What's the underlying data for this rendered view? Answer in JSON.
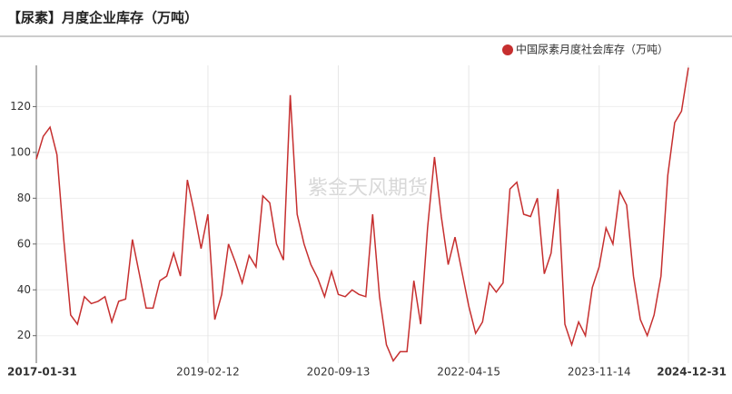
{
  "chart_data": {
    "type": "line",
    "title": "【尿素】月度企业库存（万吨）",
    "watermark": "紫金天风期货",
    "categories": [
      "2017-01-31",
      null,
      null,
      null,
      null,
      null,
      null,
      null,
      null,
      null,
      null,
      null,
      null,
      null,
      null,
      null,
      null,
      null,
      null,
      null,
      null,
      null,
      null,
      null,
      null,
      "2019-02-12",
      null,
      null,
      null,
      null,
      null,
      null,
      null,
      null,
      null,
      null,
      null,
      null,
      null,
      null,
      null,
      null,
      null,
      null,
      "2020-09-13",
      null,
      null,
      null,
      null,
      null,
      null,
      null,
      null,
      null,
      null,
      null,
      null,
      null,
      null,
      null,
      null,
      null,
      null,
      "2022-04-15",
      null,
      null,
      null,
      null,
      null,
      null,
      null,
      null,
      null,
      null,
      null,
      null,
      null,
      null,
      null,
      null,
      null,
      null,
      "2023-11-14",
      null,
      null,
      null,
      null,
      null,
      null,
      null,
      null,
      null,
      null,
      null,
      null,
      "2024-12-31"
    ],
    "series": [
      {
        "name": "中国尿素月度社会库存（万吨）",
        "color": "#c62f2f",
        "values": [
          97,
          107,
          111,
          99,
          62,
          29,
          25,
          37,
          34,
          35,
          37,
          26,
          35,
          36,
          62,
          47,
          32,
          32,
          44,
          46,
          56,
          46,
          88,
          74,
          58,
          73,
          27,
          38,
          60,
          52,
          43,
          55,
          50,
          81,
          78,
          60,
          53,
          125,
          73,
          60,
          51,
          45,
          37,
          48,
          38,
          37,
          40,
          38,
          37,
          73,
          37,
          16,
          9,
          13,
          13,
          44,
          25,
          67,
          98,
          72,
          51,
          63,
          48,
          33,
          21,
          26,
          43,
          39,
          43,
          84,
          87,
          73,
          72,
          80,
          47,
          56,
          84,
          25,
          16,
          26,
          20,
          41,
          50,
          67,
          60,
          83,
          77,
          46,
          27,
          20,
          29,
          46,
          90,
          113,
          118,
          137
        ]
      }
    ],
    "ylim": [
      8,
      138
    ],
    "yticks": [
      20,
      40,
      60,
      80,
      100,
      120
    ],
    "grid": true,
    "legend": "top-right"
  }
}
